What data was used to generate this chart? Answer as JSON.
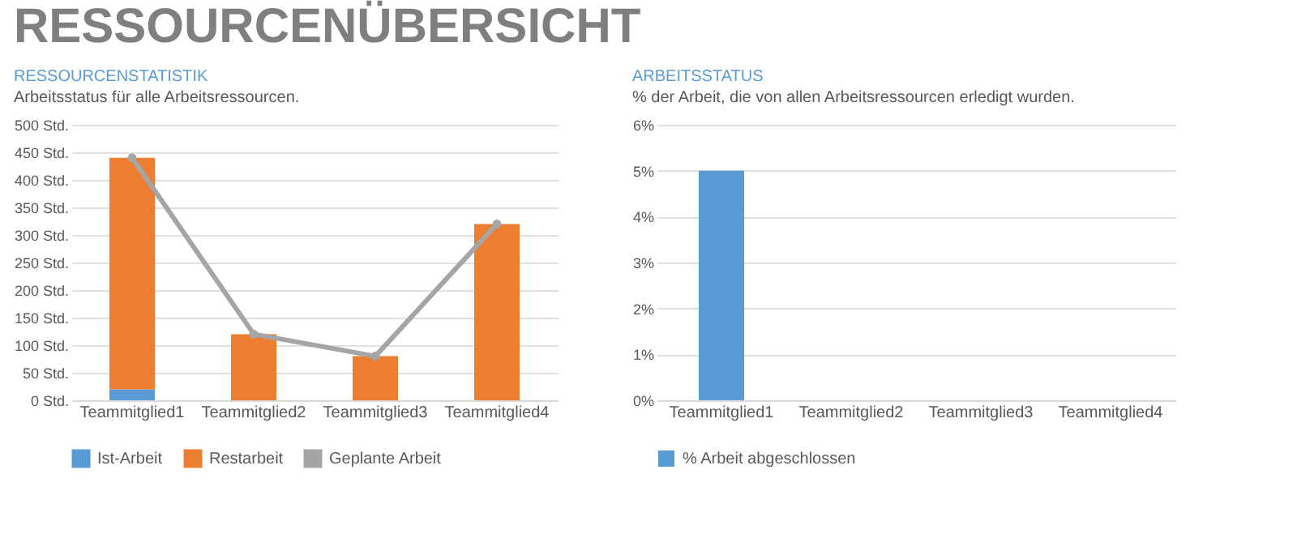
{
  "chart_data": [
    {
      "type": "bar",
      "title": "RESSOURCENSTATISTIK",
      "subtitle": "Arbeitsstatus für alle Arbeitsressourcen.",
      "annotations": [
        "RESSOURCENÜBERSICHT"
      ],
      "categories": [
        "Teammitglied1",
        "Teammitglied2",
        "Teammitglied3",
        "Teammitglied4"
      ],
      "stacked": true,
      "series": [
        {
          "name": "Ist-Arbeit",
          "color": "#5b9bd5",
          "values": [
            20,
            0,
            0,
            0
          ]
        },
        {
          "name": "Restarbeit",
          "color": "#ed7d31",
          "values": [
            420,
            120,
            80,
            320
          ]
        },
        {
          "name": "Geplante Arbeit",
          "color": "#a5a5a5",
          "type": "line",
          "marker": "circle",
          "values": [
            440,
            120,
            80,
            320
          ]
        }
      ],
      "ylim": [
        0,
        500
      ],
      "yticks": [
        {
          "value": 0,
          "label": "0 Std."
        },
        {
          "value": 50,
          "label": "50 Std."
        },
        {
          "value": 100,
          "label": "100 Std."
        },
        {
          "value": 150,
          "label": "150 Std."
        },
        {
          "value": 200,
          "label": "200 Std."
        },
        {
          "value": 250,
          "label": "250 Std."
        },
        {
          "value": 300,
          "label": "300 Std."
        },
        {
          "value": 350,
          "label": "350 Std."
        },
        {
          "value": 400,
          "label": "400 Std."
        },
        {
          "value": 450,
          "label": "450 Std."
        },
        {
          "value": 500,
          "label": "500 Std."
        }
      ],
      "grid": "y",
      "legend": "bottom"
    },
    {
      "type": "bar",
      "title": "ARBEITSSTATUS",
      "subtitle": "% der Arbeit, die von allen Arbeitsressourcen erledigt wurden.",
      "categories": [
        "Teammitglied1",
        "Teammitglied2",
        "Teammitglied3",
        "Teammitglied4"
      ],
      "series": [
        {
          "name": "% Arbeit abgeschlossen",
          "color": "#5b9bd5",
          "values": [
            5,
            0,
            0,
            0
          ]
        }
      ],
      "ylim": [
        0,
        6
      ],
      "yticks": [
        {
          "value": 0,
          "label": "0%"
        },
        {
          "value": 1,
          "label": "1%"
        },
        {
          "value": 2,
          "label": "2%"
        },
        {
          "value": 3,
          "label": "3%"
        },
        {
          "value": 4,
          "label": "4%"
        },
        {
          "value": 5,
          "label": "5%"
        },
        {
          "value": 6,
          "label": "6%"
        }
      ],
      "grid": "y",
      "legend": "bottom"
    }
  ]
}
